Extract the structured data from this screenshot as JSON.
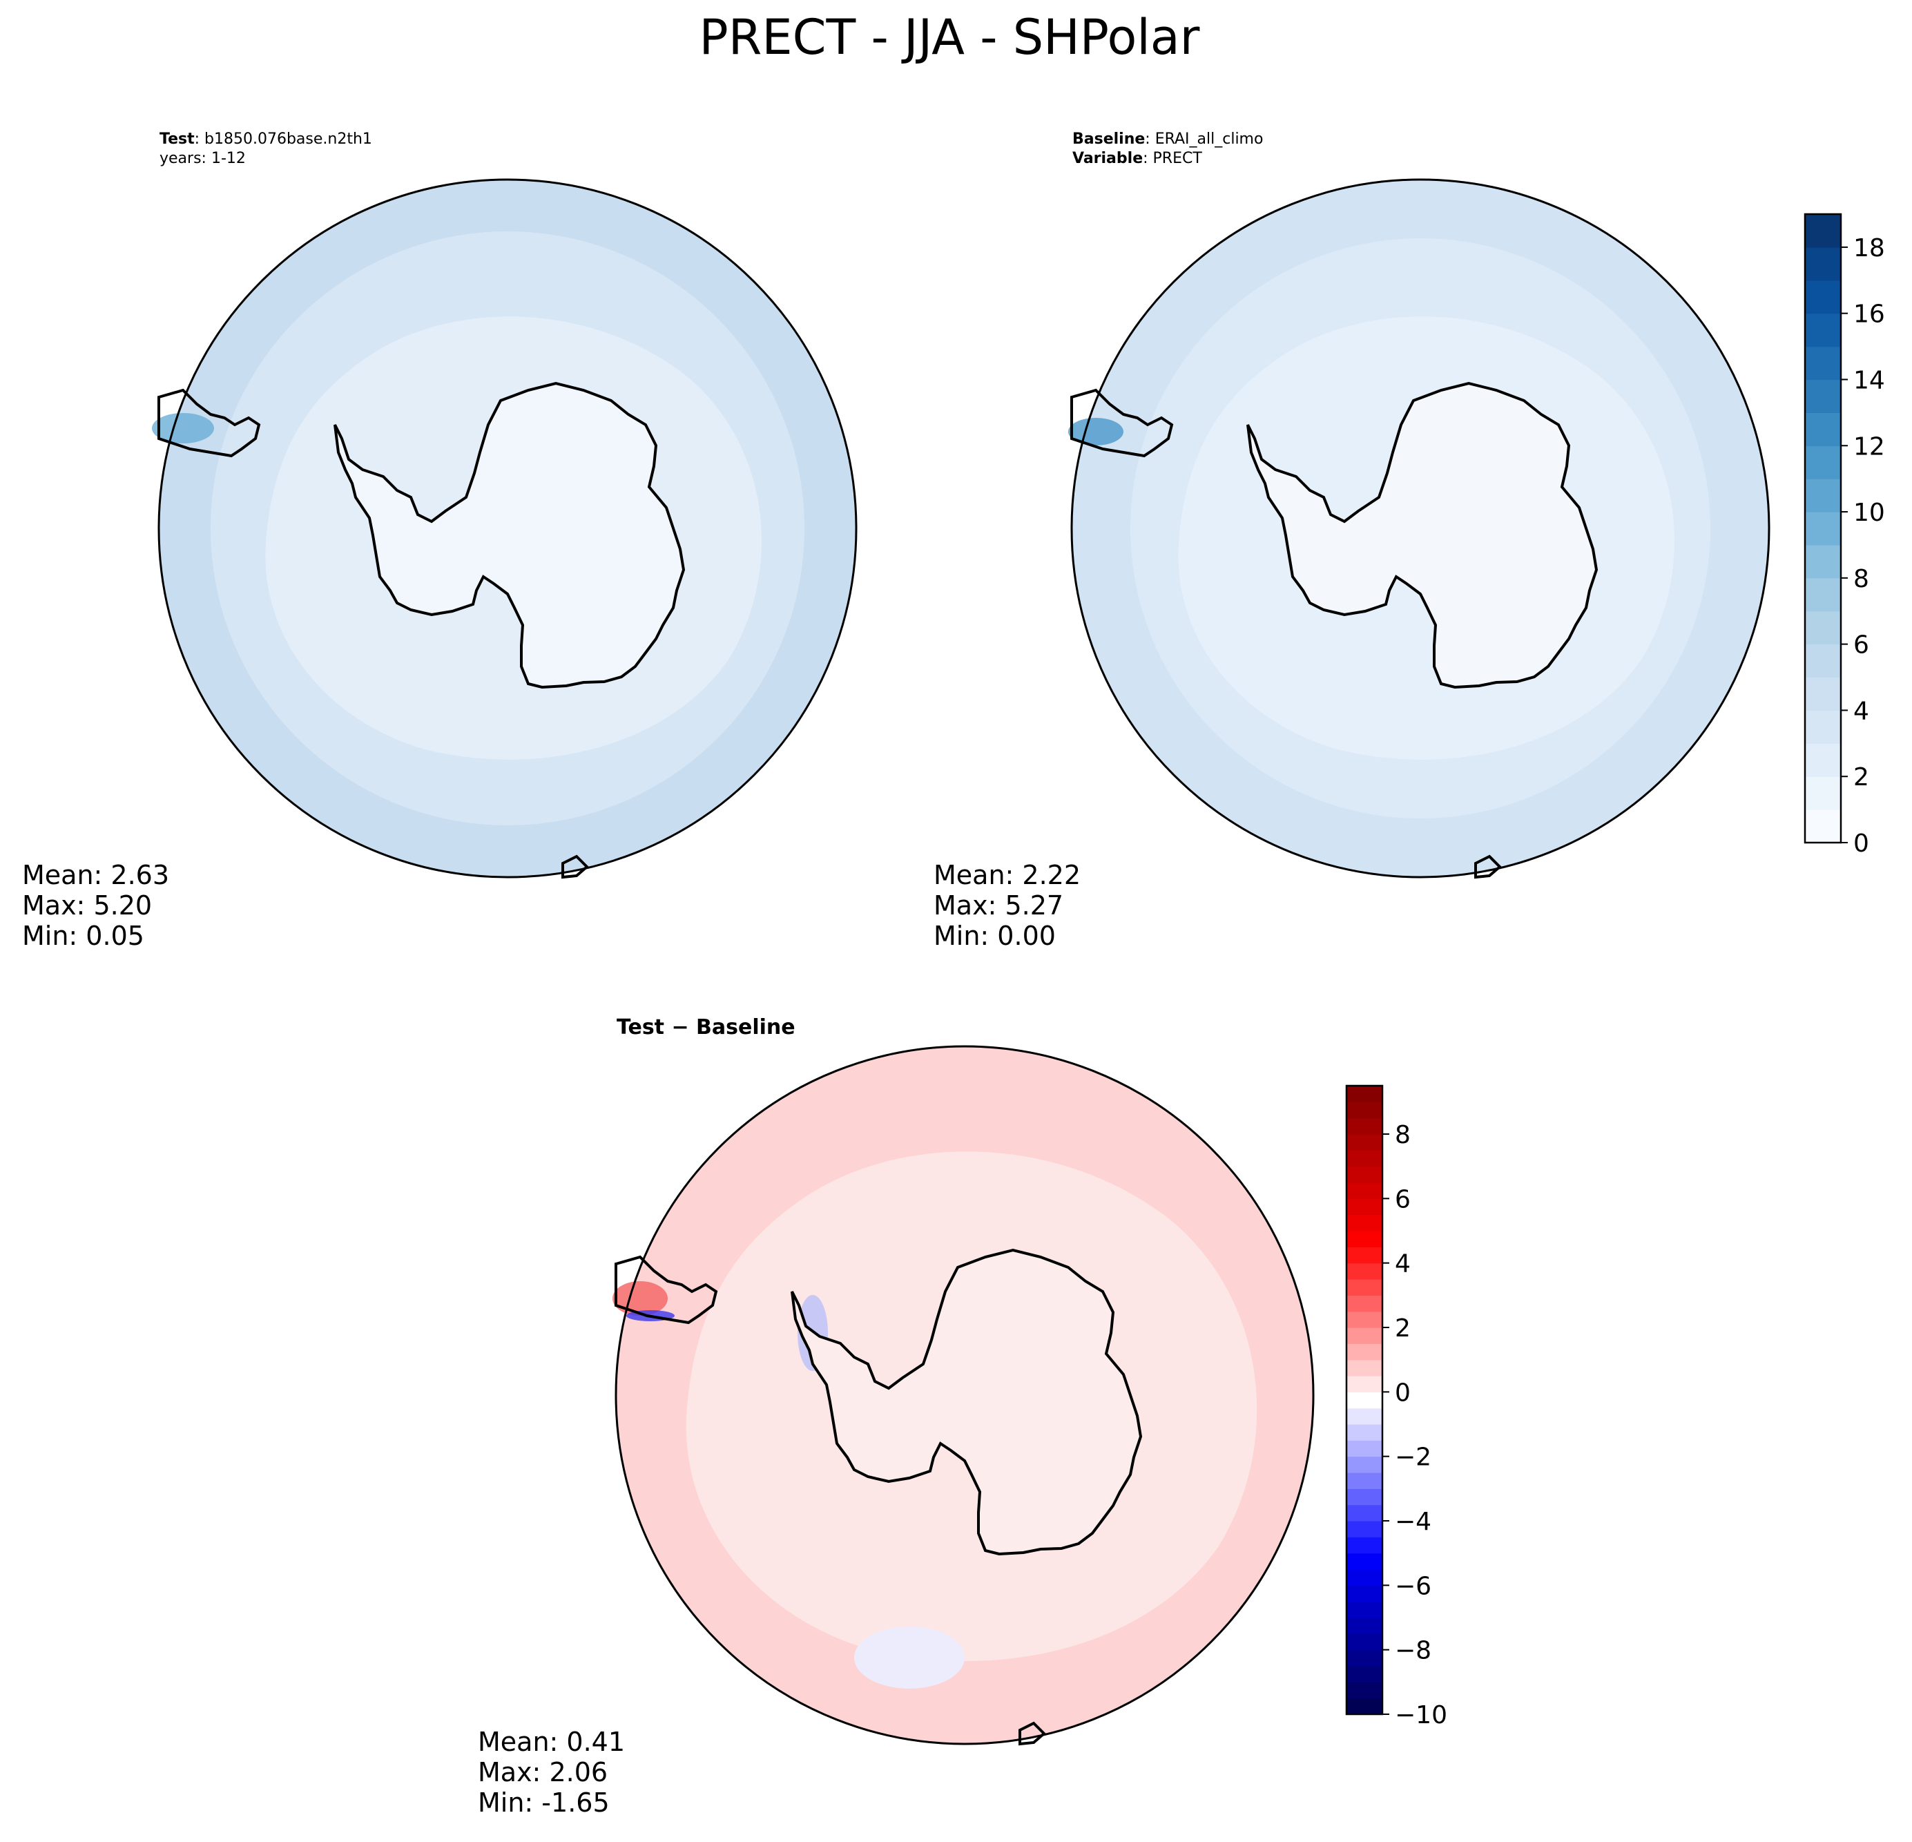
{
  "figure_title": "PRECT - JJA - SHPolar",
  "panels": {
    "test": {
      "label_bold": "Test",
      "label_value": ": b1850.076base.n2th1",
      "label_line2": "years: 1-12",
      "stats": {
        "mean": "Mean:  2.63",
        "max": "Max:  5.20",
        "min": "Min:  0.05"
      }
    },
    "baseline": {
      "label_bold": "Baseline",
      "label_value": ": ERAI_all_climo",
      "label2_bold": "Variable",
      "label2_value": ": PRECT",
      "stats": {
        "mean": "Mean:  2.22",
        "max": "Max:  5.27",
        "min": "Min:  0.00"
      }
    },
    "diff": {
      "title": "Test − Baseline",
      "stats": {
        "mean": "Mean:  0.41",
        "max": "Max:  2.06",
        "min": "Min: -1.65"
      }
    }
  },
  "chart_data": [
    {
      "type": "heatmap",
      "panel": "Test",
      "projection": "south polar stereographic",
      "colormap": "Blues",
      "mean": 2.63,
      "max": 5.2,
      "min": 0.05
    },
    {
      "type": "heatmap",
      "panel": "Baseline",
      "projection": "south polar stereographic",
      "colormap": "Blues",
      "mean": 2.22,
      "max": 5.27,
      "min": 0.0,
      "colorbar": {
        "range": [
          0,
          19
        ],
        "ticks": [
          0,
          2,
          4,
          6,
          8,
          10,
          12,
          14,
          16,
          18
        ],
        "tick_labels": [
          "0",
          "2",
          "4",
          "6",
          "8",
          "10",
          "12",
          "14",
          "16",
          "18"
        ],
        "levels": 19,
        "colors": [
          "#f7fbff",
          "#ecf4fc",
          "#e1edf8",
          "#d7e6f5",
          "#cde0f1",
          "#c1d9ed",
          "#b2d2e8",
          "#a0cae3",
          "#8abfdd",
          "#73b2d8",
          "#5ea5d1",
          "#4b98ca",
          "#3a8bc2",
          "#2c7cba",
          "#1f6eb2",
          "#1460a8",
          "#0b529e",
          "#08458a",
          "#083774"
        ]
      }
    },
    {
      "type": "heatmap",
      "panel": "Test − Baseline",
      "projection": "south polar stereographic",
      "colormap": "seismic",
      "mean": 0.41,
      "max": 2.06,
      "min": -1.65,
      "colorbar": {
        "range": [
          -10,
          9.5
        ],
        "ticks": [
          -10,
          -8,
          -6,
          -4,
          -2,
          0,
          2,
          4,
          6,
          8
        ],
        "tick_labels": [
          "−10",
          "−8",
          "−6",
          "−4",
          "−2",
          "0",
          "2",
          "4",
          "6",
          "8"
        ],
        "levels": 39
      }
    }
  ],
  "colors": {
    "ocean_low": "#e3eef9",
    "ocean_mid": "#d4e4f4",
    "ocean_high": "#c6dbef",
    "land": "#f4f8fd",
    "diff_pos_light": "#fde2e2",
    "diff_pos_mid": "#fdd0d0",
    "diff_neg_light": "#eaeafd",
    "coast": "#000000"
  }
}
